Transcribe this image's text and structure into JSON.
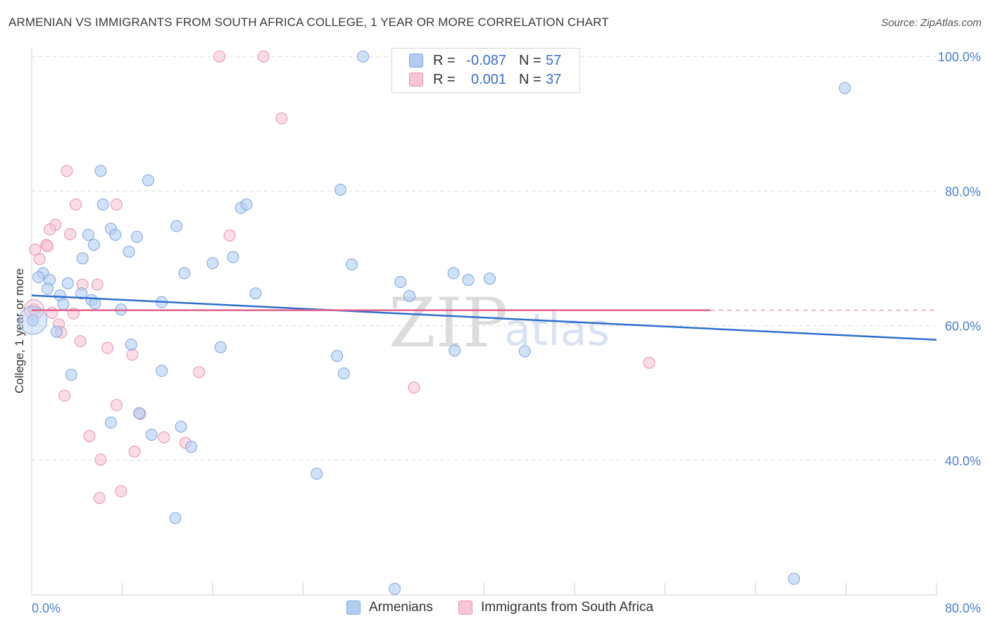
{
  "title": "ARMENIAN VS IMMIGRANTS FROM SOUTH AFRICA COLLEGE, 1 YEAR OR MORE CORRELATION CHART",
  "source": "Source: ZipAtlas.com",
  "watermark": {
    "part1": "ZIP",
    "part2": "atlas"
  },
  "legend": {
    "rows": [
      {
        "r_label": "R =",
        "r_value": "-0.087",
        "n_label": "N =",
        "n_value": "57"
      },
      {
        "r_label": "R =",
        "r_value": "0.001",
        "n_label": "N =",
        "n_value": "37"
      }
    ]
  },
  "bottom_legend": [
    "Armenians",
    "Immigrants from South Africa"
  ],
  "colors": {
    "blue_fill": "#b3cdf1",
    "blue_stroke": "#7ea6dd",
    "blue_line": "#2f6fcf",
    "pink_fill": "#f7c5d6",
    "pink_stroke": "#e893b0",
    "pink_line": "#e0608c",
    "tick_label": "#4a7fd0",
    "grid": "#dadada"
  },
  "chart_data": {
    "type": "scatter",
    "title": "ARMENIAN VS IMMIGRANTS FROM SOUTH AFRICA COLLEGE, 1 YEAR OR MORE CORRELATION CHART",
    "xlabel": "",
    "ylabel": "College, 1 year or more",
    "xlim": [
      0,
      80
    ],
    "ylim": [
      20,
      102
    ],
    "x_tick_labels": [
      "0.0%",
      "80.0%"
    ],
    "y_ticks": [
      40,
      60,
      80,
      100
    ],
    "y_tick_labels": [
      "40.0%",
      "60.0%",
      "80.0%",
      "100.0%"
    ],
    "grid": true,
    "legend_position": "top-center",
    "series": [
      {
        "name": "Armenians",
        "r": -0.087,
        "n": 57,
        "trend": {
          "x": [
            0,
            80
          ],
          "y": [
            64.5,
            57.9
          ]
        },
        "points": [
          [
            29.3,
            100.0
          ],
          [
            71.9,
            95.3
          ],
          [
            6.1,
            83.0
          ],
          [
            10.3,
            81.6
          ],
          [
            27.3,
            80.2
          ],
          [
            6.3,
            78.0
          ],
          [
            18.5,
            77.5
          ],
          [
            19.0,
            78.0
          ],
          [
            12.8,
            74.8
          ],
          [
            7.0,
            74.4
          ],
          [
            5.0,
            73.5
          ],
          [
            7.4,
            73.5
          ],
          [
            9.3,
            73.2
          ],
          [
            5.5,
            72.0
          ],
          [
            8.6,
            71.0
          ],
          [
            4.5,
            70.0
          ],
          [
            17.8,
            70.2
          ],
          [
            16.0,
            69.3
          ],
          [
            28.3,
            69.1
          ],
          [
            1.0,
            67.8
          ],
          [
            13.5,
            67.8
          ],
          [
            37.3,
            67.8
          ],
          [
            0.6,
            67.2
          ],
          [
            1.6,
            66.8
          ],
          [
            38.6,
            66.8
          ],
          [
            40.5,
            67.0
          ],
          [
            32.6,
            66.5
          ],
          [
            3.2,
            66.3
          ],
          [
            1.4,
            65.5
          ],
          [
            19.8,
            64.8
          ],
          [
            2.5,
            64.5
          ],
          [
            4.4,
            64.8
          ],
          [
            33.4,
            64.4
          ],
          [
            5.3,
            63.8
          ],
          [
            11.5,
            63.5
          ],
          [
            2.8,
            63.2
          ],
          [
            5.6,
            63.3
          ],
          [
            7.9,
            62.4
          ],
          [
            0.1,
            60.8
          ],
          [
            2.2,
            59.1
          ],
          [
            8.8,
            57.2
          ],
          [
            16.7,
            56.8
          ],
          [
            37.4,
            56.3
          ],
          [
            43.6,
            56.2
          ],
          [
            27.0,
            55.5
          ],
          [
            11.5,
            53.3
          ],
          [
            3.5,
            52.7
          ],
          [
            27.6,
            52.9
          ],
          [
            9.5,
            47.0
          ],
          [
            7.0,
            45.6
          ],
          [
            13.2,
            45.0
          ],
          [
            10.6,
            43.8
          ],
          [
            14.1,
            42.0
          ],
          [
            25.2,
            38.0
          ],
          [
            12.7,
            31.4
          ],
          [
            32.1,
            20.9
          ],
          [
            67.4,
            22.4
          ]
        ]
      },
      {
        "name": "Immigrants from South Africa",
        "r": 0.001,
        "n": 37,
        "trend": {
          "x": [
            0,
            60
          ],
          "y": [
            62.3,
            62.3
          ]
        },
        "trend_dashed_to": 80,
        "points": [
          [
            16.6,
            100.0
          ],
          [
            20.5,
            100.0
          ],
          [
            22.1,
            90.8
          ],
          [
            3.1,
            83.0
          ],
          [
            3.9,
            78.0
          ],
          [
            7.5,
            78.0
          ],
          [
            2.1,
            75.0
          ],
          [
            1.6,
            74.3
          ],
          [
            3.4,
            73.6
          ],
          [
            17.5,
            73.4
          ],
          [
            1.3,
            72.0
          ],
          [
            1.4,
            71.8
          ],
          [
            0.3,
            71.3
          ],
          [
            0.7,
            69.9
          ],
          [
            4.5,
            66.1
          ],
          [
            5.8,
            66.1
          ],
          [
            0.2,
            62.4
          ],
          [
            1.8,
            61.9
          ],
          [
            3.7,
            61.8
          ],
          [
            2.4,
            60.2
          ],
          [
            2.6,
            59.0
          ],
          [
            4.3,
            57.7
          ],
          [
            6.7,
            56.7
          ],
          [
            8.9,
            55.7
          ],
          [
            54.6,
            54.5
          ],
          [
            14.8,
            53.1
          ],
          [
            33.8,
            50.8
          ],
          [
            2.9,
            49.6
          ],
          [
            7.5,
            48.2
          ],
          [
            9.6,
            46.9
          ],
          [
            5.1,
            43.6
          ],
          [
            11.7,
            43.4
          ],
          [
            13.6,
            42.6
          ],
          [
            9.1,
            41.3
          ],
          [
            6.1,
            40.1
          ],
          [
            7.9,
            35.4
          ],
          [
            6.0,
            34.4
          ]
        ]
      }
    ]
  }
}
